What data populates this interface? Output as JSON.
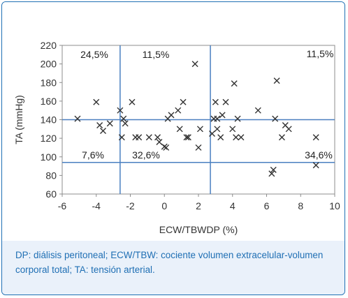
{
  "chart_data": {
    "type": "scatter",
    "xlabel": "ECW/TBWDP (%)",
    "ylabel": "TA (mmHg)",
    "xlim": [
      -6,
      10
    ],
    "ylim": [
      60,
      220
    ],
    "xticks": [
      -6,
      -4,
      -2,
      0,
      2,
      4,
      6,
      8,
      10
    ],
    "yticks": [
      60,
      80,
      100,
      120,
      140,
      160,
      180,
      200,
      220
    ],
    "xtick_labels": [
      "-6",
      "-4",
      "-2",
      "0",
      "2",
      "4",
      "6",
      "8",
      "10"
    ],
    "ytick_labels": [
      "60",
      "80",
      "100",
      "120",
      "140",
      "160",
      "180",
      "200",
      "220"
    ],
    "grid": false,
    "marker": "x",
    "reference_lines": {
      "vertical": [
        -2.6,
        2.7
      ],
      "horizontal": [
        140,
        94
      ]
    },
    "annotations": [
      "24,5%",
      "11,5%",
      "11,5%",
      "7,6%",
      "32,6%",
      "34,6%"
    ],
    "points": [
      {
        "x": -5.1,
        "y": 141
      },
      {
        "x": -4.0,
        "y": 159
      },
      {
        "x": -3.8,
        "y": 134
      },
      {
        "x": -3.6,
        "y": 128
      },
      {
        "x": -3.2,
        "y": 136
      },
      {
        "x": -2.6,
        "y": 150
      },
      {
        "x": -2.5,
        "y": 121
      },
      {
        "x": -2.4,
        "y": 141
      },
      {
        "x": -2.3,
        "y": 136
      },
      {
        "x": -1.9,
        "y": 159
      },
      {
        "x": -1.7,
        "y": 121
      },
      {
        "x": -1.5,
        "y": 121
      },
      {
        "x": -0.9,
        "y": 121
      },
      {
        "x": -0.4,
        "y": 121
      },
      {
        "x": -0.3,
        "y": 116
      },
      {
        "x": 0.0,
        "y": 111
      },
      {
        "x": 0.1,
        "y": 110
      },
      {
        "x": 0.2,
        "y": 141
      },
      {
        "x": 0.4,
        "y": 145
      },
      {
        "x": 0.8,
        "y": 150
      },
      {
        "x": 0.9,
        "y": 130
      },
      {
        "x": 1.1,
        "y": 159
      },
      {
        "x": 1.3,
        "y": 121
      },
      {
        "x": 1.4,
        "y": 121
      },
      {
        "x": 1.8,
        "y": 200
      },
      {
        "x": 2.0,
        "y": 110
      },
      {
        "x": 2.1,
        "y": 130
      },
      {
        "x": 2.8,
        "y": 125
      },
      {
        "x": 2.9,
        "y": 141
      },
      {
        "x": 3.0,
        "y": 159
      },
      {
        "x": 3.1,
        "y": 141
      },
      {
        "x": 3.1,
        "y": 130
      },
      {
        "x": 3.3,
        "y": 121
      },
      {
        "x": 3.4,
        "y": 145
      },
      {
        "x": 3.6,
        "y": 159
      },
      {
        "x": 4.0,
        "y": 130
      },
      {
        "x": 4.1,
        "y": 179
      },
      {
        "x": 4.2,
        "y": 121
      },
      {
        "x": 4.3,
        "y": 141
      },
      {
        "x": 4.5,
        "y": 121
      },
      {
        "x": 5.5,
        "y": 150
      },
      {
        "x": 6.3,
        "y": 82
      },
      {
        "x": 6.4,
        "y": 86
      },
      {
        "x": 6.5,
        "y": 141
      },
      {
        "x": 6.6,
        "y": 182
      },
      {
        "x": 6.9,
        "y": 121
      },
      {
        "x": 7.1,
        "y": 134
      },
      {
        "x": 7.3,
        "y": 130
      },
      {
        "x": 8.9,
        "y": 121
      },
      {
        "x": 8.9,
        "y": 91
      }
    ]
  },
  "caption": {
    "text": "DP: diálisis peritoneal; ECW/TBW: cociente volumen extracelular-volumen corporal total; TA: tensión arterial."
  }
}
